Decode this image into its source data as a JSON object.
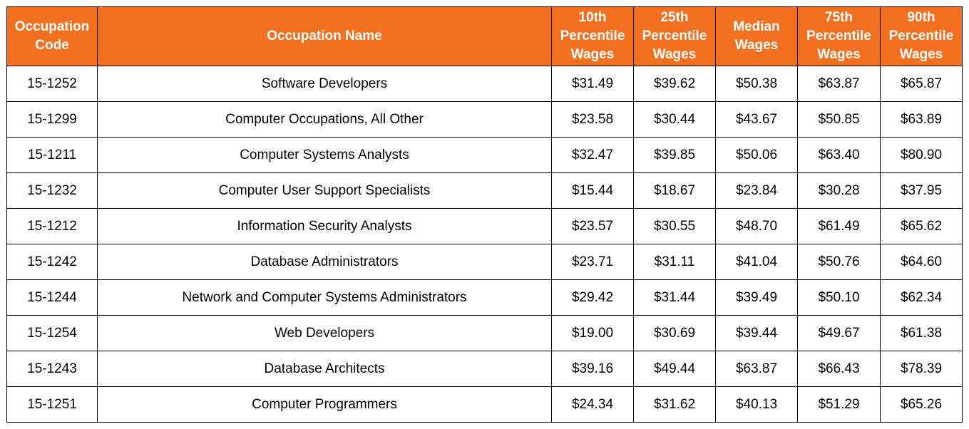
{
  "colors": {
    "header_bg": "#f37021",
    "header_text": "#ffffff",
    "border": "#000000"
  },
  "headers": [
    [
      "Occupation",
      "Code"
    ],
    [
      "Occupation Name"
    ],
    [
      "10th",
      "Percentile",
      "Wages"
    ],
    [
      "25th",
      "Percentile",
      "Wages"
    ],
    [
      "Median",
      "Wages"
    ],
    [
      "75th",
      "Percentile",
      "Wages"
    ],
    [
      "90th",
      "Percentile",
      "Wages"
    ]
  ],
  "rows": [
    [
      "15-1252",
      "Software Developers",
      "$31.49",
      "$39.62",
      "$50.38",
      "$63.87",
      "$65.87"
    ],
    [
      "15-1299",
      "Computer Occupations, All Other",
      "$23.58",
      "$30.44",
      "$43.67",
      "$50.85",
      "$63.89"
    ],
    [
      "15-1211",
      "Computer Systems Analysts",
      "$32.47",
      "$39.85",
      "$50.06",
      "$63.40",
      "$80.90"
    ],
    [
      "15-1232",
      "Computer User Support Specialists",
      "$15.44",
      "$18.67",
      "$23.84",
      "$30.28",
      "$37.95"
    ],
    [
      "15-1212",
      "Information Security Analysts",
      "$23.57",
      "$30.55",
      "$48.70",
      "$61.49",
      "$65.62"
    ],
    [
      "15-1242",
      "Database Administrators",
      "$23.71",
      "$31.11",
      "$41.04",
      "$50.76",
      "$64.60"
    ],
    [
      "15-1244",
      "Network and Computer Systems Administrators",
      "$29.42",
      "$31.44",
      "$39.49",
      "$50.10",
      "$62.34"
    ],
    [
      "15-1254",
      "Web Developers",
      "$19.00",
      "$30.69",
      "$39.44",
      "$49.67",
      "$61.38"
    ],
    [
      "15-1243",
      "Database Architects",
      "$39.16",
      "$49.44",
      "$63.87",
      "$66.43",
      "$78.39"
    ],
    [
      "15-1251",
      "Computer Programmers",
      "$24.34",
      "$31.62",
      "$40.13",
      "$51.29",
      "$65.26"
    ]
  ]
}
